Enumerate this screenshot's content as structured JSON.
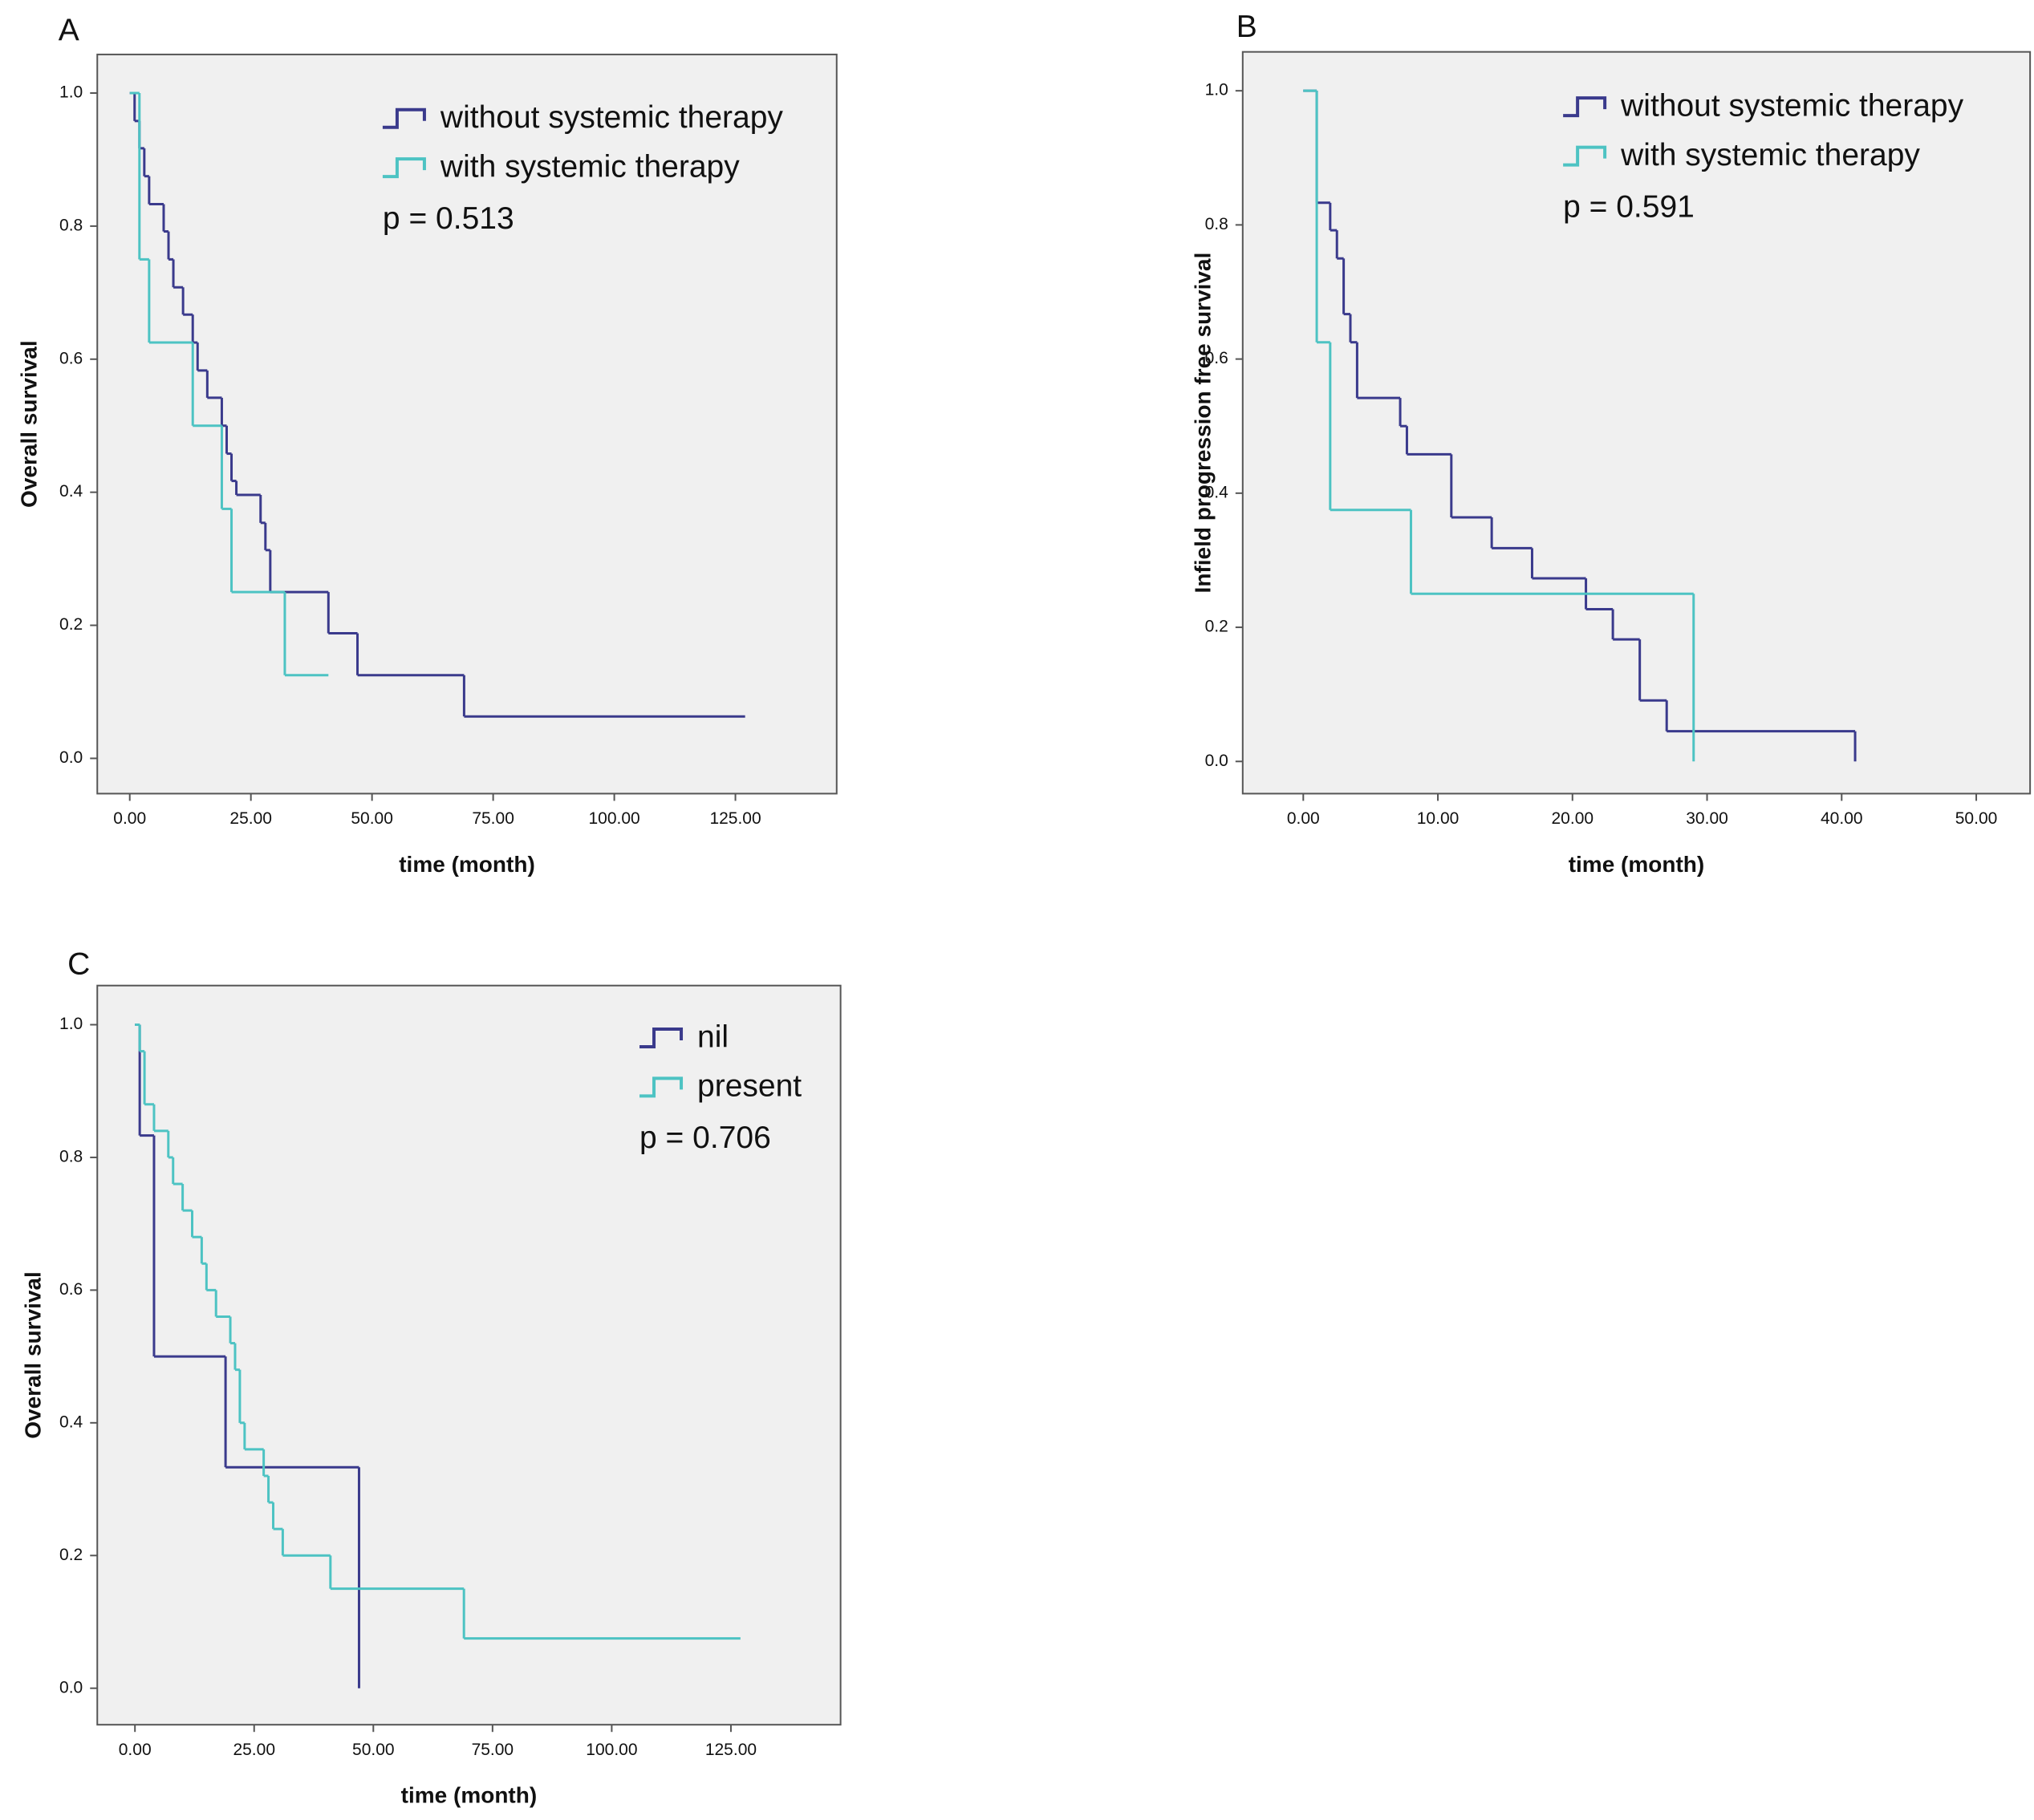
{
  "chart_data": [
    {
      "type": "step",
      "label": "A",
      "annotation": "p = 0.513",
      "xlabel": "time (month)",
      "ylabel": "Overall survival",
      "xlim": [
        -6.7,
        145.9
      ],
      "ylim": [
        -0.053,
        1.058
      ],
      "xticks": [
        {
          "value": 0,
          "label": "0.00"
        },
        {
          "value": 25,
          "label": "25.00"
        },
        {
          "value": 50,
          "label": "50.00"
        },
        {
          "value": 75,
          "label": "75.00"
        },
        {
          "value": 100,
          "label": "100.00"
        },
        {
          "value": 125,
          "label": "125.00"
        }
      ],
      "yticks": [
        {
          "value": 0,
          "label": "0.0"
        },
        0.2,
        0.4,
        0.6,
        0.8,
        {
          "value": 1,
          "label": "1.0"
        }
      ],
      "series": [
        {
          "name": "without systemic therapy",
          "color": "#3a3a8c",
          "x": [
            0,
            1,
            2,
            3,
            4,
            7,
            8,
            9,
            11,
            13,
            14,
            16,
            19,
            20,
            21,
            22,
            27,
            28,
            29,
            41,
            47,
            69,
            127
          ],
          "values": [
            1.0,
            0.958,
            0.917,
            0.875,
            0.833,
            0.792,
            0.75,
            0.708,
            0.667,
            0.625,
            0.583,
            0.542,
            0.5,
            0.458,
            0.417,
            0.396,
            0.354,
            0.313,
            0.25,
            0.188,
            0.125,
            0.063,
            0.063
          ]
        },
        {
          "name": "with systemic therapy",
          "color": "#4dc3c3",
          "x": [
            0,
            2,
            4,
            13,
            19,
            21,
            32,
            41
          ],
          "values": [
            1.0,
            0.75,
            0.625,
            0.5,
            0.375,
            0.25,
            0.125,
            0.125
          ]
        }
      ]
    },
    {
      "type": "step",
      "label": "B",
      "annotation": "p = 0.591",
      "xlabel": "time (month)",
      "ylabel": "Infield progression free survival",
      "xlim": [
        -4.5,
        54.0
      ],
      "ylim": [
        -0.048,
        1.058
      ],
      "xticks": [
        {
          "value": 0,
          "label": "0.00"
        },
        {
          "value": 10,
          "label": "10.00"
        },
        {
          "value": 20,
          "label": "20.00"
        },
        {
          "value": 30,
          "label": "30.00"
        },
        {
          "value": 40,
          "label": "40.00"
        },
        {
          "value": 50,
          "label": "50.00"
        }
      ],
      "yticks": [
        {
          "value": 0,
          "label": "0.0"
        },
        0.2,
        0.4,
        0.6,
        0.8,
        {
          "value": 1,
          "label": "1.0"
        }
      ],
      "series": [
        {
          "name": "without systemic therapy",
          "color": "#3a3a8c",
          "x": [
            0,
            1,
            2,
            2.5,
            3,
            3.5,
            4,
            7.2,
            7.7,
            11,
            14,
            17,
            21,
            23,
            25,
            27,
            41
          ],
          "values": [
            1.0,
            0.833,
            0.792,
            0.75,
            0.667,
            0.625,
            0.542,
            0.5,
            0.458,
            0.364,
            0.318,
            0.273,
            0.227,
            0.182,
            0.091,
            0.045,
            0.0
          ]
        },
        {
          "name": "with systemic therapy",
          "color": "#4dc3c3",
          "x": [
            0,
            1,
            2,
            8,
            29
          ],
          "values": [
            1.0,
            0.625,
            0.375,
            0.25,
            0.0
          ]
        }
      ]
    },
    {
      "type": "step",
      "label": "C",
      "annotation": "p = 0.706",
      "xlabel": "time (month)",
      "ylabel": "Overall survival",
      "xlim": [
        -7.9,
        148.0
      ],
      "ylim": [
        -0.055,
        1.059
      ],
      "xticks": [
        {
          "value": 0,
          "label": "0.00"
        },
        {
          "value": 25,
          "label": "25.00"
        },
        {
          "value": 50,
          "label": "50.00"
        },
        {
          "value": 75,
          "label": "75.00"
        },
        {
          "value": 100,
          "label": "100.00"
        },
        {
          "value": 125,
          "label": "125.00"
        }
      ],
      "yticks": [
        {
          "value": 0,
          "label": "0.0"
        },
        0.2,
        0.4,
        0.6,
        0.8,
        {
          "value": 1,
          "label": "1.0"
        }
      ],
      "series": [
        {
          "name": "nil",
          "color": "#3a3a8c",
          "x": [
            0,
            1,
            4,
            19,
            47
          ],
          "values": [
            1.0,
            0.833,
            0.5,
            0.333,
            0.0
          ]
        },
        {
          "name": "present",
          "color": "#4dc3c3",
          "x": [
            0,
            1,
            2,
            4,
            7,
            8,
            10,
            12,
            14,
            15,
            17,
            20,
            21,
            22,
            23,
            27,
            28,
            29,
            31,
            41,
            69,
            127
          ],
          "values": [
            1.0,
            0.96,
            0.88,
            0.84,
            0.8,
            0.76,
            0.72,
            0.68,
            0.64,
            0.6,
            0.56,
            0.52,
            0.48,
            0.4,
            0.36,
            0.32,
            0.28,
            0.24,
            0.2,
            0.15,
            0.075,
            0.075
          ]
        }
      ]
    }
  ]
}
